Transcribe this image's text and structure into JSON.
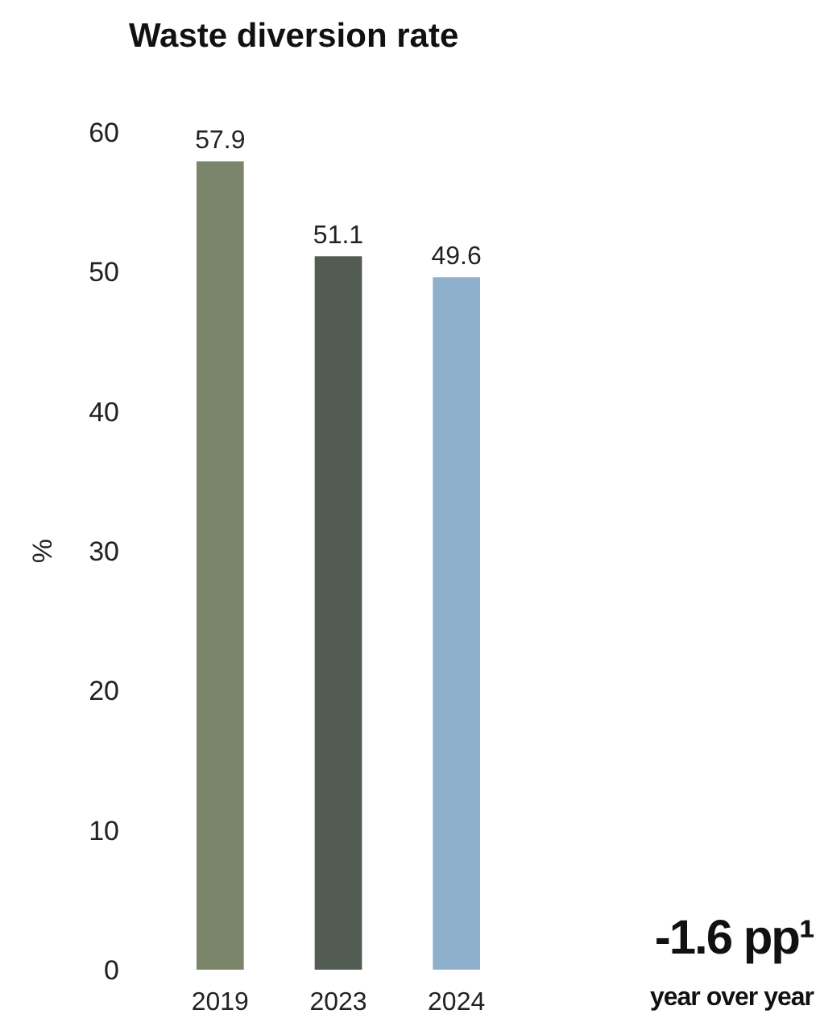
{
  "chart_data": {
    "type": "bar",
    "title": "Waste diversion rate",
    "ylabel": "%",
    "categories": [
      "2019",
      "2023",
      "2024"
    ],
    "values": [
      57.9,
      51.1,
      49.6
    ],
    "colors": [
      "#7b856a",
      "#535c53",
      "#8fb0cc"
    ],
    "ylim": [
      0,
      60
    ],
    "yticks": [
      0,
      10,
      20,
      30,
      40,
      50,
      60
    ],
    "data_labels": true,
    "grid": false,
    "annotations": [
      "-1.6 pp¹",
      "year over year"
    ]
  }
}
